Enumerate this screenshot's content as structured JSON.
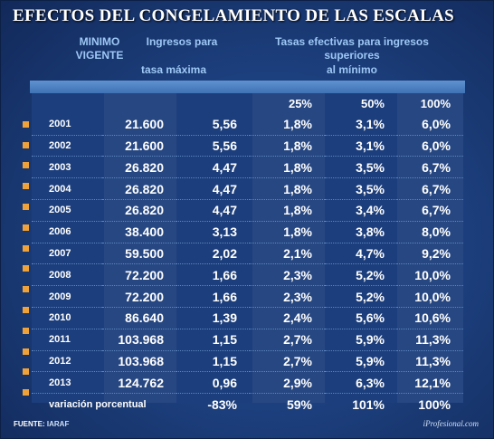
{
  "title": "EFECTOS DEL CONGELAMIENTO DE LAS ESCALAS",
  "headers": {
    "minimo_line1": "MINIMO",
    "minimo_line2": "VIGENTE",
    "ingresos_line1": "Ingresos para",
    "ingresos_line2": "tasa máxima",
    "tasas_line1": "Tasas efectivas para ingresos",
    "tasas_line2": "superiores",
    "tasas_line3": "al mínimo",
    "pct": [
      "25%",
      "50%",
      "100%"
    ]
  },
  "rows": [
    {
      "year": "2001",
      "minimo": "21.600",
      "ingresos": "5,56",
      "p25": "1,8%",
      "p50": "3,1%",
      "p100": "6,0%"
    },
    {
      "year": "2002",
      "minimo": "21.600",
      "ingresos": "5,56",
      "p25": "1,8%",
      "p50": "3,1%",
      "p100": "6,0%"
    },
    {
      "year": "2003",
      "minimo": "26.820",
      "ingresos": "4,47",
      "p25": "1,8%",
      "p50": "3,5%",
      "p100": "6,7%"
    },
    {
      "year": "2004",
      "minimo": "26.820",
      "ingresos": "4,47",
      "p25": "1,8%",
      "p50": "3,5%",
      "p100": "6,7%"
    },
    {
      "year": "2005",
      "minimo": "26.820",
      "ingresos": "4,47",
      "p25": "1,8%",
      "p50": "3,4%",
      "p100": "6,7%"
    },
    {
      "year": "2006",
      "minimo": "38.400",
      "ingresos": "3,13",
      "p25": "1,8%",
      "p50": "3,8%",
      "p100": "8,0%"
    },
    {
      "year": "2007",
      "minimo": "59.500",
      "ingresos": "2,02",
      "p25": "2,1%",
      "p50": "4,7%",
      "p100": "9,2%"
    },
    {
      "year": "2008",
      "minimo": "72.200",
      "ingresos": "1,66",
      "p25": "2,3%",
      "p50": "5,2%",
      "p100": "10,0%"
    },
    {
      "year": "2009",
      "minimo": "72.200",
      "ingresos": "1,66",
      "p25": "2,3%",
      "p50": "5,2%",
      "p100": "10,0%"
    },
    {
      "year": "2010",
      "minimo": "86.640",
      "ingresos": "1,39",
      "p25": "2,4%",
      "p50": "5,6%",
      "p100": "10,6%"
    },
    {
      "year": "2011",
      "minimo": "103.968",
      "ingresos": "1,15",
      "p25": "2,7%",
      "p50": "5,9%",
      "p100": "11,3%"
    },
    {
      "year": "2012",
      "minimo": "103.968",
      "ingresos": "1,15",
      "p25": "2,7%",
      "p50": "5,9%",
      "p100": "11,3%"
    },
    {
      "year": "2013",
      "minimo": "124.762",
      "ingresos": "0,96",
      "p25": "2,9%",
      "p50": "6,3%",
      "p100": "12,1%"
    }
  ],
  "variacion": {
    "label": "variación porcentual",
    "ingresos": "-83%",
    "p25": "59%",
    "p50": "101%",
    "p100": "100%"
  },
  "footer": {
    "fuente_label": "FUENTE:",
    "fuente_value": "IARAF",
    "brand": "iProfesional.com"
  },
  "colors": {
    "bullet": "#f0a23a",
    "header_text": "#9ec8f5",
    "background": "#1d4180"
  }
}
